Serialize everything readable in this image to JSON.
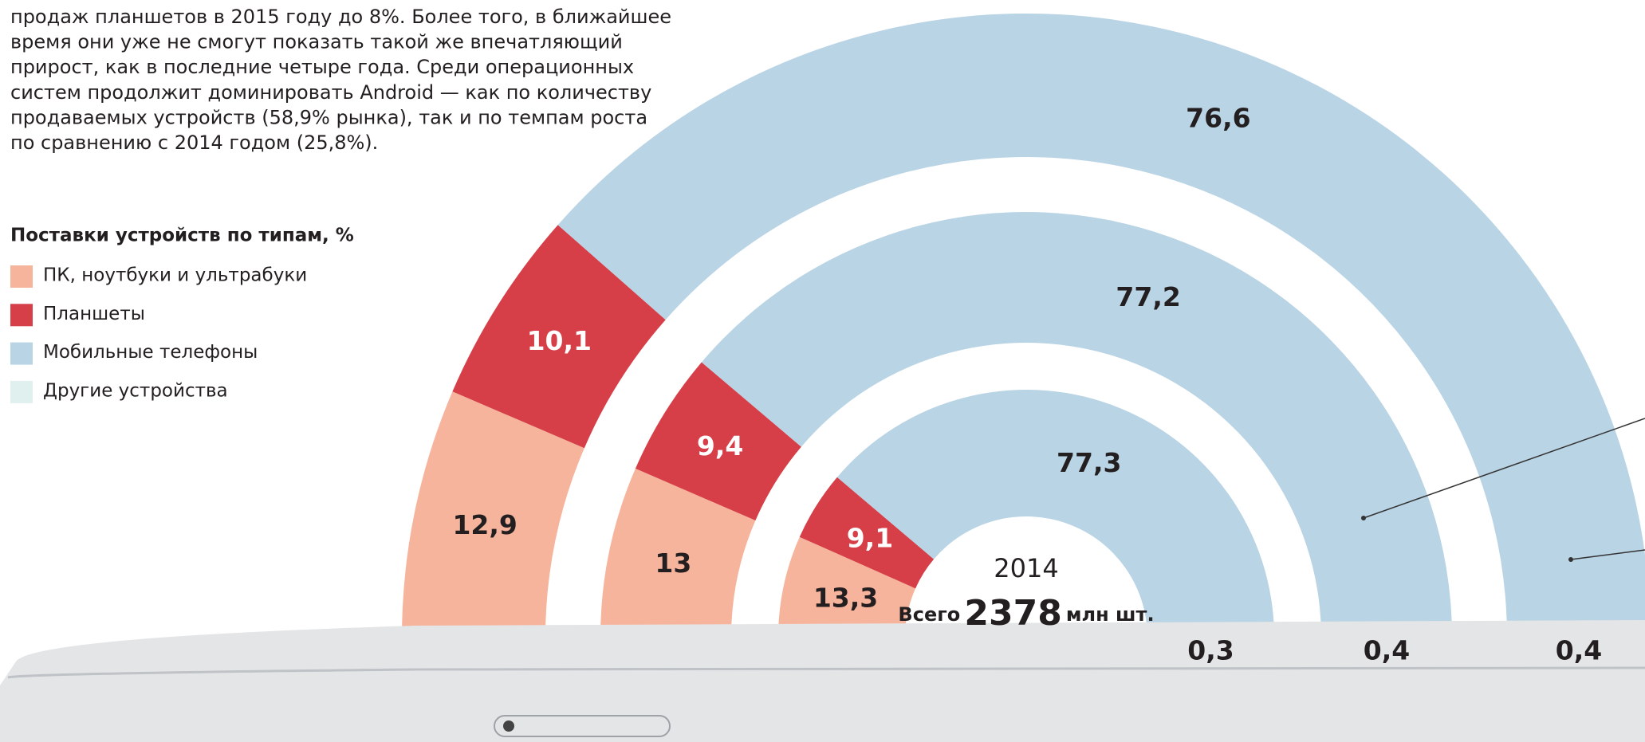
{
  "intro": [
    "продаж планшетов в 2015 году до 8%. Более того, в ближайшее",
    "время они уже не смогут показать такой же впечатляющий",
    "прирост, как в последние четыре года. Среди операционных",
    "систем продолжит доминировать Android — как по количеству",
    "продаваемых устройств (58,9% рынка), так и по темпам роста",
    "по сравнению с 2014 годом (25,8%)."
  ],
  "chart_data": {
    "type": "semi_donut",
    "title": "Поставки устройств по типам, %",
    "categories": [
      "ПК, ноутбуки и ультрабуки",
      "Планшеты",
      "Мобильные телефоны",
      "Другие устройства"
    ],
    "colors": [
      "#f7b49c",
      "#d63f47",
      "#b9d4e5",
      "#e0f0ee"
    ],
    "series": [
      {
        "name": "2014",
        "values": [
          13.3,
          9.1,
          77.3,
          0.3
        ],
        "value_labels": [
          "13,3",
          "9,1",
          "77,3",
          "0,3"
        ]
      },
      {
        "values": [
          13,
          9.4,
          77.2,
          0.4
        ],
        "value_labels": [
          "13",
          "9,4",
          "77,2",
          "0,4"
        ]
      },
      {
        "values": [
          12.9,
          10.1,
          76.6,
          0.4
        ],
        "value_labels": [
          "12,9",
          "10,1",
          "76,6",
          "0,4"
        ]
      }
    ],
    "total_prefix": "Всего",
    "total": 2378,
    "total_unit": "млн шт."
  }
}
